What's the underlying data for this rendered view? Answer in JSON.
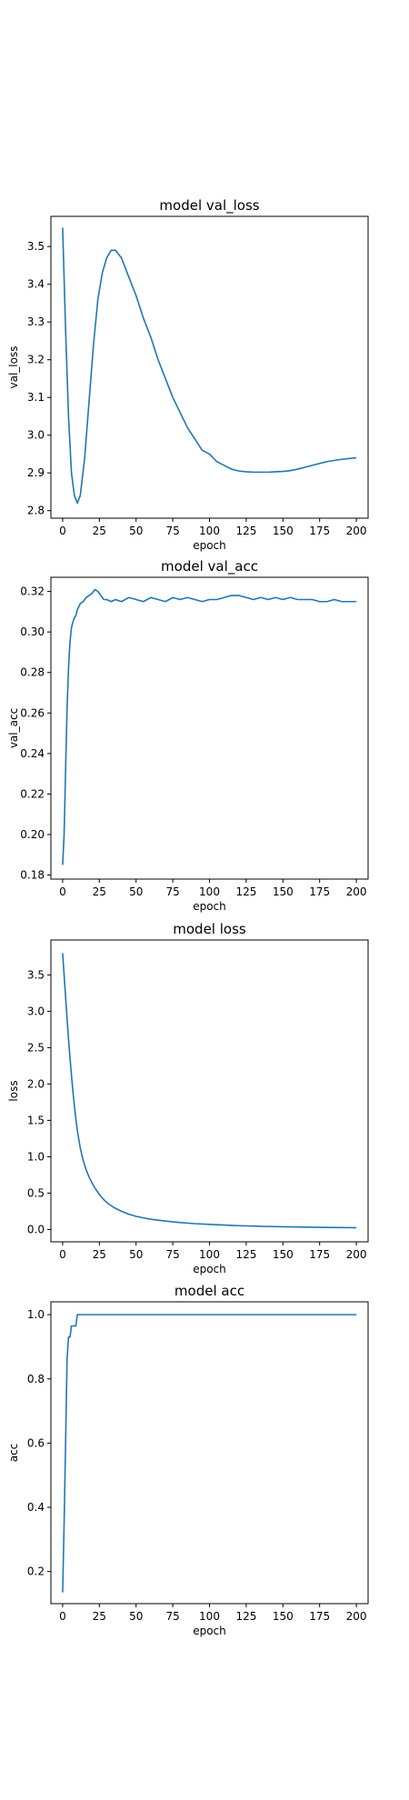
{
  "chart_data": [
    {
      "type": "line",
      "title": "model val_loss",
      "xlabel": "epoch",
      "ylabel": "val_loss",
      "xlim": [
        -8,
        208
      ],
      "ylim": [
        2.78,
        3.58
      ],
      "xticks": [
        0,
        25,
        50,
        75,
        100,
        125,
        150,
        175,
        200
      ],
      "yticks": [
        2.8,
        2.9,
        3.0,
        3.1,
        3.2,
        3.3,
        3.4,
        3.5
      ],
      "ytick_labels": [
        "2.8",
        "2.9",
        "3.0",
        "3.1",
        "3.2",
        "3.3",
        "3.4",
        "3.5"
      ],
      "grid": false,
      "color": "#1f77b4",
      "x": [
        0,
        2,
        4,
        6,
        8,
        10,
        12,
        15,
        18,
        21,
        24,
        27,
        30,
        33,
        36,
        40,
        45,
        50,
        55,
        60,
        65,
        70,
        75,
        80,
        85,
        90,
        95,
        100,
        105,
        110,
        115,
        120,
        125,
        130,
        135,
        140,
        145,
        150,
        155,
        160,
        165,
        170,
        175,
        180,
        185,
        190,
        195,
        200
      ],
      "y": [
        3.55,
        3.28,
        3.05,
        2.9,
        2.84,
        2.82,
        2.84,
        2.94,
        3.09,
        3.24,
        3.36,
        3.43,
        3.47,
        3.49,
        3.49,
        3.47,
        3.42,
        3.37,
        3.31,
        3.26,
        3.2,
        3.15,
        3.1,
        3.06,
        3.02,
        2.99,
        2.96,
        2.95,
        2.93,
        2.92,
        2.91,
        2.905,
        2.903,
        2.902,
        2.902,
        2.902,
        2.903,
        2.904,
        2.906,
        2.91,
        2.915,
        2.92,
        2.925,
        2.93,
        2.933,
        2.936,
        2.938,
        2.94
      ]
    },
    {
      "type": "line",
      "title": "model val_acc",
      "xlabel": "epoch",
      "ylabel": "val_acc",
      "xlim": [
        -8,
        208
      ],
      "ylim": [
        0.178,
        0.327
      ],
      "xticks": [
        0,
        25,
        50,
        75,
        100,
        125,
        150,
        175,
        200
      ],
      "yticks": [
        0.18,
        0.2,
        0.22,
        0.24,
        0.26,
        0.28,
        0.3,
        0.32
      ],
      "ytick_labels": [
        "0.18",
        "0.20",
        "0.22",
        "0.24",
        "0.26",
        "0.28",
        "0.30",
        "0.32"
      ],
      "grid": false,
      "color": "#1f77b4",
      "x": [
        0,
        1,
        2,
        3,
        4,
        5,
        6,
        7,
        8,
        9,
        10,
        12,
        14,
        16,
        18,
        20,
        22,
        24,
        26,
        28,
        30,
        33,
        36,
        40,
        45,
        50,
        55,
        60,
        65,
        70,
        75,
        80,
        85,
        90,
        95,
        100,
        105,
        110,
        115,
        120,
        125,
        130,
        135,
        140,
        145,
        150,
        155,
        160,
        165,
        170,
        175,
        180,
        185,
        190,
        195,
        200
      ],
      "y": [
        0.185,
        0.2,
        0.232,
        0.262,
        0.282,
        0.295,
        0.302,
        0.305,
        0.307,
        0.308,
        0.311,
        0.314,
        0.315,
        0.317,
        0.318,
        0.319,
        0.321,
        0.32,
        0.318,
        0.316,
        0.316,
        0.315,
        0.316,
        0.315,
        0.317,
        0.316,
        0.315,
        0.317,
        0.316,
        0.315,
        0.317,
        0.316,
        0.317,
        0.316,
        0.315,
        0.316,
        0.316,
        0.317,
        0.318,
        0.318,
        0.317,
        0.316,
        0.317,
        0.316,
        0.317,
        0.316,
        0.317,
        0.316,
        0.316,
        0.316,
        0.315,
        0.315,
        0.316,
        0.315,
        0.315,
        0.315
      ]
    },
    {
      "type": "line",
      "title": "model loss",
      "xlabel": "epoch",
      "ylabel": "loss",
      "xlim": [
        -8,
        208
      ],
      "ylim": [
        -0.17,
        3.98
      ],
      "xticks": [
        0,
        25,
        50,
        75,
        100,
        125,
        150,
        175,
        200
      ],
      "yticks": [
        0.0,
        0.5,
        1.0,
        1.5,
        2.0,
        2.5,
        3.0,
        3.5
      ],
      "ytick_labels": [
        "0.0",
        "0.5",
        "1.0",
        "1.5",
        "2.0",
        "2.5",
        "3.0",
        "3.5"
      ],
      "grid": false,
      "color": "#1f77b4",
      "x": [
        0,
        1,
        2,
        3,
        4,
        5,
        6,
        7,
        8,
        9,
        10,
        12,
        14,
        16,
        18,
        20,
        22,
        25,
        28,
        31,
        35,
        40,
        45,
        50,
        55,
        60,
        70,
        80,
        90,
        100,
        110,
        120,
        130,
        140,
        150,
        160,
        170,
        180,
        190,
        200
      ],
      "y": [
        3.8,
        3.5,
        3.2,
        2.9,
        2.62,
        2.36,
        2.12,
        1.9,
        1.7,
        1.52,
        1.36,
        1.12,
        0.95,
        0.82,
        0.72,
        0.64,
        0.57,
        0.48,
        0.41,
        0.355,
        0.3,
        0.25,
        0.21,
        0.18,
        0.16,
        0.14,
        0.115,
        0.095,
        0.08,
        0.07,
        0.06,
        0.052,
        0.046,
        0.041,
        0.037,
        0.034,
        0.031,
        0.028,
        0.026,
        0.024
      ]
    },
    {
      "type": "line",
      "title": "model acc",
      "xlabel": "epoch",
      "ylabel": "acc",
      "xlim": [
        -8,
        208
      ],
      "ylim": [
        0.1,
        1.04
      ],
      "xticks": [
        0,
        25,
        50,
        75,
        100,
        125,
        150,
        175,
        200
      ],
      "yticks": [
        0.2,
        0.4,
        0.6,
        0.8,
        1.0
      ],
      "ytick_labels": [
        "0.2",
        "0.4",
        "0.6",
        "0.8",
        "1.0"
      ],
      "grid": false,
      "color": "#1f77b4",
      "x": [
        0,
        1,
        2,
        3,
        4,
        5,
        6,
        7,
        8,
        9,
        10,
        11,
        12,
        15,
        20,
        50,
        100,
        150,
        200
      ],
      "y": [
        0.135,
        0.35,
        0.6,
        0.86,
        0.93,
        0.93,
        0.965,
        0.965,
        0.965,
        0.965,
        1.0,
        1.0,
        1.0,
        1.0,
        1.0,
        1.0,
        1.0,
        1.0,
        1.0
      ]
    }
  ]
}
